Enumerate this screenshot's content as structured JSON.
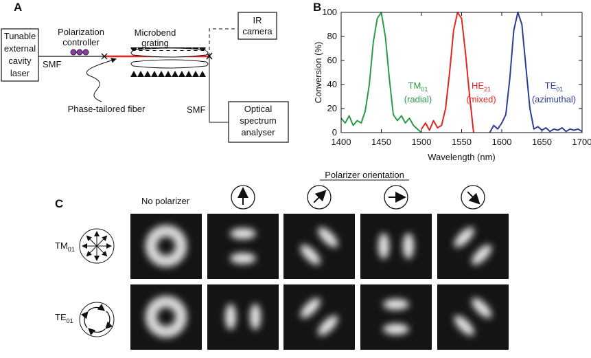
{
  "panel_a": {
    "label": "A",
    "laser": [
      "Tunable",
      "external",
      "cavity",
      "laser"
    ],
    "smf_left": "SMF",
    "controller": [
      "Polarization",
      "controller"
    ],
    "grating": [
      "Microbend",
      "grating"
    ],
    "camera": [
      "IR",
      "camera"
    ],
    "fiber": "Phase-tailored fiber",
    "smf_right": "SMF",
    "analyser": [
      "Optical",
      "spectrum",
      "analyser"
    ]
  },
  "chart_data": {
    "type": "line",
    "label": "B",
    "xlabel": "Wavelength (nm)",
    "ylabel": "Conversion (%)",
    "xlim": [
      1400,
      1700
    ],
    "ylim": [
      0,
      100
    ],
    "xticks": [
      1400,
      1450,
      1500,
      1550,
      1600,
      1650,
      1700
    ],
    "yticks": [
      0,
      20,
      40,
      60,
      80,
      100
    ],
    "series": [
      {
        "name": "TM",
        "name_subscript": "01",
        "note": "(radial)",
        "color": "#2a9a48",
        "x": [
          1400,
          1405,
          1410,
          1415,
          1420,
          1425,
          1430,
          1435,
          1440,
          1445,
          1450,
          1455,
          1460,
          1465,
          1470,
          1475,
          1480,
          1485,
          1490,
          1495,
          1500
        ],
        "values": [
          12,
          8,
          14,
          6,
          10,
          8,
          18,
          40,
          75,
          95,
          100,
          80,
          45,
          15,
          10,
          14,
          8,
          12,
          6,
          3,
          0
        ]
      },
      {
        "name": "HE",
        "name_subscript": "21",
        "note": "(mixed)",
        "color": "#e32420",
        "x": [
          1500,
          1505,
          1510,
          1515,
          1520,
          1525,
          1530,
          1535,
          1540,
          1545,
          1550,
          1555,
          1560,
          1565
        ],
        "values": [
          3,
          8,
          2,
          10,
          4,
          6,
          20,
          50,
          85,
          100,
          95,
          65,
          30,
          0
        ]
      },
      {
        "name": "TE",
        "name_subscript": "01",
        "note": "(azimuthal)",
        "color": "#2b3c98",
        "x": [
          1585,
          1590,
          1595,
          1600,
          1605,
          1610,
          1615,
          1620,
          1625,
          1630,
          1635,
          1640,
          1645,
          1650,
          1655,
          1660,
          1665,
          1670,
          1675,
          1680,
          1685,
          1690,
          1695,
          1700
        ],
        "values": [
          0,
          6,
          3,
          8,
          15,
          45,
          85,
          100,
          90,
          55,
          20,
          3,
          5,
          2,
          4,
          1,
          3,
          2,
          4,
          1,
          3,
          2,
          3,
          1
        ]
      }
    ]
  },
  "panel_c": {
    "label": "C",
    "header": "Polarizer orientation",
    "no_polarizer": "No polarizer",
    "rows": [
      {
        "name": "TM",
        "name_subscript": "01"
      },
      {
        "name": "TE",
        "name_subscript": "01"
      }
    ]
  }
}
